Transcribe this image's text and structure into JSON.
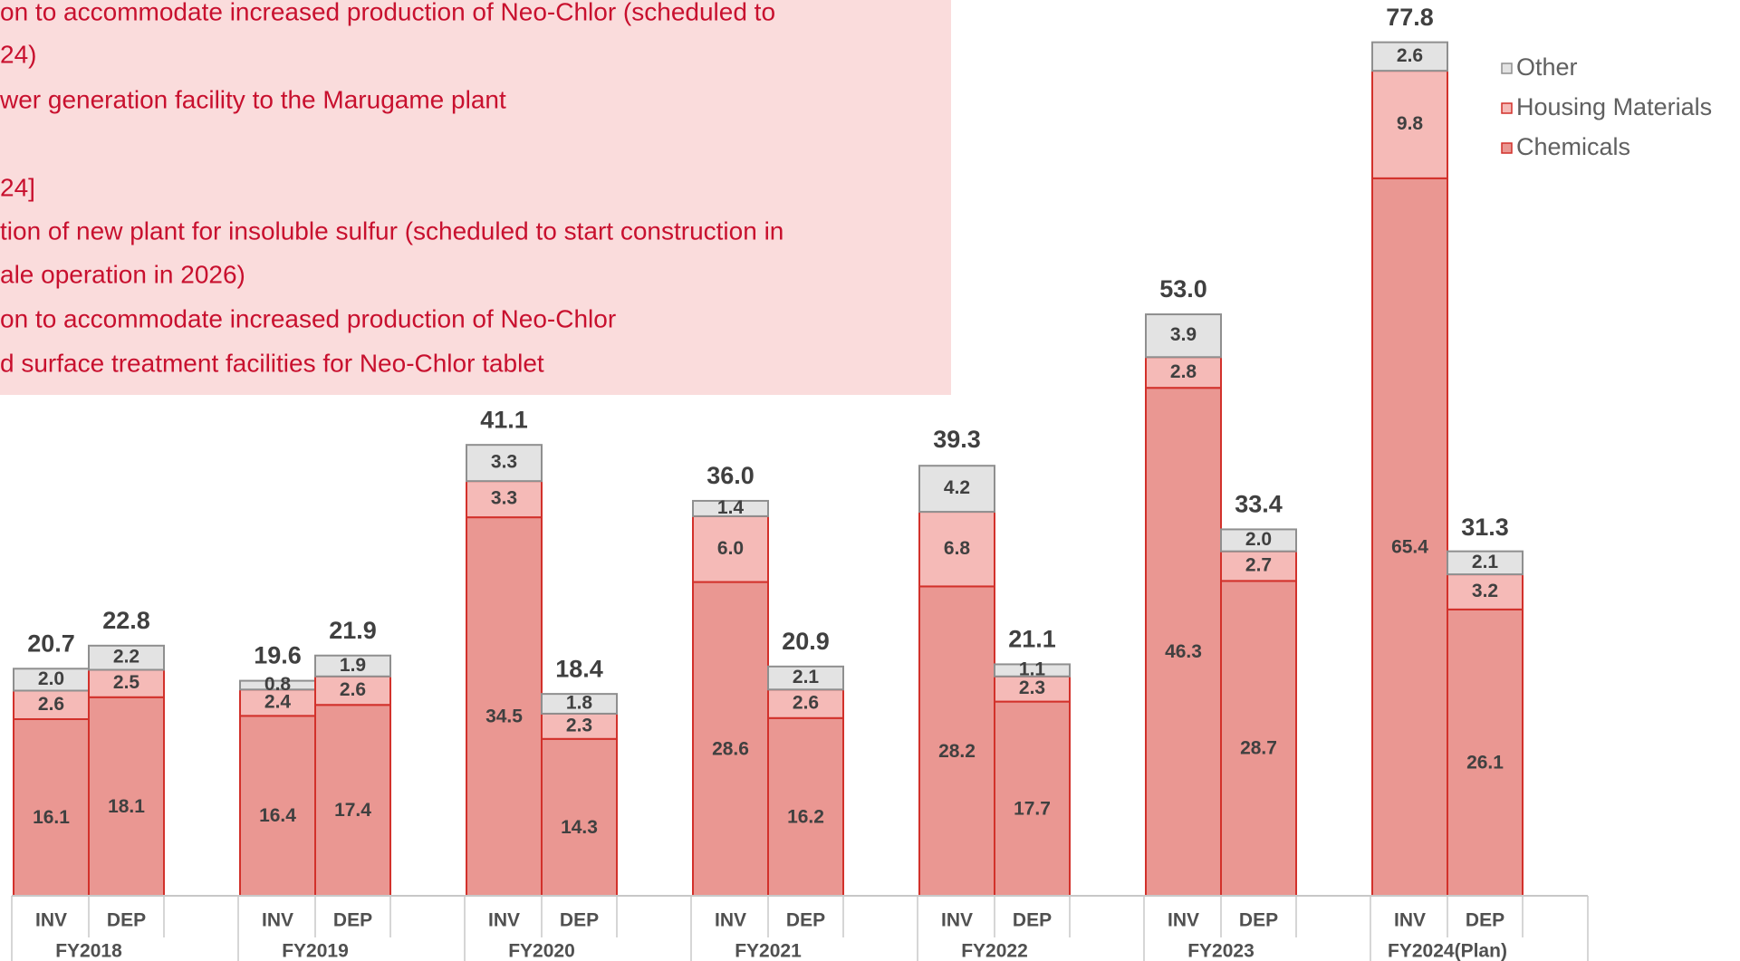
{
  "chart_data": {
    "type": "stacked_bar",
    "annotation_lines": [
      "on to accommodate increased production of Neo-Chlor (scheduled to",
      "24)",
      "wer generation facility to the Marugame plant",
      "24]",
      "tion of new plant for insoluble sulfur (scheduled to start construction in",
      "ale operation in 2026)",
      "on to accommodate increased production of Neo-Chlor",
      "d surface treatment facilities for Neo-Chlor tablet"
    ],
    "groups": [
      "FY2018",
      "FY2019",
      "FY2020",
      "FY2021",
      "FY2022",
      "FY2023",
      "FY2024(Plan)"
    ],
    "categories": [
      "INV",
      "DEP",
      "INV",
      "DEP",
      "INV",
      "DEP",
      "INV",
      "DEP",
      "INV",
      "DEP",
      "INV",
      "DEP",
      "INV",
      "DEP"
    ],
    "ylim": [
      0,
      80
    ],
    "legend": "top-right",
    "series": [
      {
        "name": "Chemicals",
        "color": "#ea9792",
        "stroke": "#d2312b",
        "values": [
          16.1,
          18.1,
          16.4,
          17.4,
          34.5,
          14.3,
          28.6,
          16.2,
          28.2,
          17.7,
          46.3,
          28.7,
          65.4,
          26.1
        ],
        "value_labels": [
          "16.1",
          "18.1",
          "16.4",
          "17.4",
          "34.5",
          "14.3",
          "28.6",
          "16.2",
          "28.2",
          "17.7",
          "46.3",
          "28.7",
          "65.4",
          "26.1"
        ]
      },
      {
        "name": "Housing Materials",
        "color": "#f5bab7",
        "stroke": "#d2312b",
        "values": [
          2.6,
          2.5,
          2.4,
          2.6,
          3.3,
          2.3,
          6.0,
          2.6,
          6.8,
          2.3,
          2.8,
          2.7,
          9.8,
          3.2
        ],
        "value_labels": [
          "2.6",
          "2.5",
          "2.4",
          "2.6",
          "3.3",
          "2.3",
          "6.0",
          "2.6",
          "6.8",
          "2.3",
          "2.8",
          "2.7",
          "9.8",
          "3.2"
        ]
      },
      {
        "name": "Other",
        "color": "#e3e3e3",
        "stroke": "#8f8f8f",
        "values": [
          2.0,
          2.2,
          0.8,
          1.9,
          3.3,
          1.8,
          1.4,
          2.1,
          4.2,
          1.1,
          3.9,
          2.0,
          2.6,
          2.1
        ],
        "value_labels": [
          "2.0",
          "2.2",
          "0.8",
          "1.9",
          "3.3",
          "1.8",
          "1.4",
          "2.1",
          "4.2",
          "1.1",
          "3.9",
          "2.0",
          "2.6",
          "2.1"
        ]
      }
    ],
    "totals": [
      20.7,
      22.8,
      19.6,
      21.9,
      41.1,
      18.4,
      36.0,
      20.9,
      39.3,
      21.1,
      53.0,
      33.4,
      77.8,
      31.3
    ],
    "totals_labels": [
      "20.7",
      "22.8",
      "19.6",
      "21.9",
      "41.1",
      "18.4",
      "36.0",
      "20.9",
      "39.3",
      "21.1",
      "53.0",
      "33.4",
      "77.8",
      "31.3"
    ]
  }
}
